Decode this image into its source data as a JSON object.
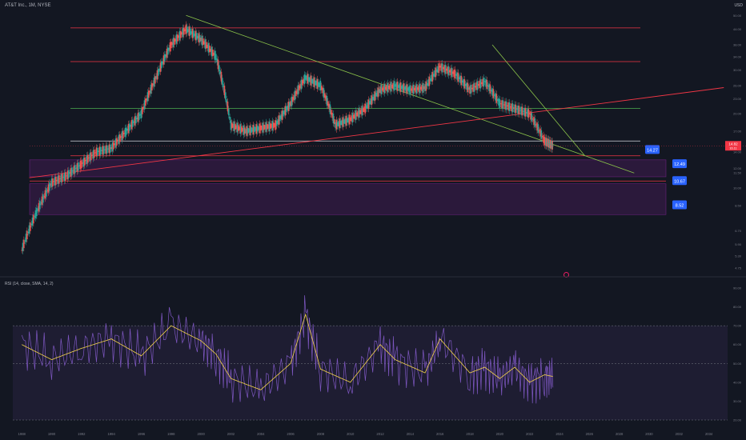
{
  "chart_data": [
    {
      "type": "line",
      "title": "AT&T Inc., 1M, NYSE",
      "currency": "USD",
      "price_axis_ticks": [
        "50.00",
        "44.00",
        "38.00",
        "34.00",
        "30.00",
        "26.00",
        "23.00",
        "20.00",
        "17.00",
        "14.00",
        "12.00",
        "11.50",
        "10.00",
        "8.50",
        "6.70",
        "5.90",
        "5.30",
        "4.75"
      ],
      "time_axis_ticks": [
        "1988",
        "1990",
        "1992",
        "1994",
        "1996",
        "1998",
        "2000",
        "2002",
        "2004",
        "2006",
        "2008",
        "2010",
        "2012",
        "2014",
        "2016",
        "2018",
        "2020",
        "2022",
        "2024",
        "2026",
        "2028",
        "2030",
        "2032",
        "2034"
      ],
      "current_price": "14.82",
      "current_price_sub": "16.11",
      "levels": [
        {
          "price": 14.27,
          "label": "14.27"
        },
        {
          "price": 12.49,
          "label": "12.49"
        },
        {
          "price": 10.67,
          "label": "10.67"
        },
        {
          "price": 8.52,
          "label": "8.52"
        }
      ],
      "horizontal_lines": [
        {
          "price": 44.5,
          "color": "#f23645"
        },
        {
          "price": 32.5,
          "color": "#f23645"
        },
        {
          "price": 21.0,
          "color": "#4caf50"
        },
        {
          "price": 15.5,
          "color": "#d1d4dc"
        },
        {
          "price": 13.5,
          "color": "#f23645"
        },
        {
          "price": 10.67,
          "color": "#f23645"
        }
      ],
      "zones": [
        {
          "from": 11.1,
          "to": 13.0,
          "color": "#9c27b0"
        },
        {
          "from": 7.8,
          "to": 10.4,
          "color": "#9c27b0"
        }
      ],
      "series_monthly_close_approx": {
        "x": [
          1988,
          1989,
          1990,
          1991,
          1992,
          1993,
          1994,
          1995,
          1996,
          1997,
          1998,
          1999,
          2000,
          2001,
          2002,
          2003,
          2004,
          2005,
          2006,
          2007,
          2008,
          2009,
          2010,
          2011,
          2012,
          2013,
          2014,
          2015,
          2016,
          2017,
          2018,
          2019,
          2020,
          2021,
          2022,
          2023,
          2023.6
        ],
        "y": [
          5.6,
          8.0,
          10.5,
          11.2,
          12.5,
          14.0,
          14.5,
          17.0,
          20.0,
          28.0,
          38.0,
          44.0,
          40.0,
          34.0,
          18.0,
          17.0,
          17.5,
          18.0,
          22.0,
          28.0,
          26.0,
          18.0,
          19.0,
          21.0,
          25.0,
          26.0,
          25.0,
          25.5,
          31.0,
          29.0,
          25.0,
          27.0,
          22.0,
          21.0,
          20.0,
          15.5,
          14.8
        ]
      },
      "colors": {
        "up": "#26a69a",
        "down": "#ef5350",
        "trend": "#8bc34a",
        "support": "#f23645"
      }
    },
    {
      "type": "line",
      "title": "RSI (14, close, SMA, 14, 2)",
      "y_ticks": [
        "90.00",
        "80.00",
        "70.00",
        "60.00",
        "50.00",
        "40.00",
        "30.00",
        "20.00"
      ],
      "ylim": [
        20,
        90
      ],
      "bands": {
        "upper": 70,
        "middle": 50,
        "lower": 20
      },
      "rsi_colors": {
        "rsi": "#7e57c2",
        "sma": "#f6d64a"
      },
      "x": [
        1988,
        1990,
        1992,
        1994,
        1996,
        1998,
        2000,
        2001,
        2002,
        2004,
        2006,
        2007,
        2008,
        2010,
        2012,
        2013,
        2015,
        2016,
        2018,
        2019,
        2020,
        2021,
        2022,
        2023,
        2023.6
      ],
      "rsi_sma": [
        60,
        52,
        58,
        63,
        54,
        70,
        62,
        55,
        42,
        36,
        50,
        76,
        47,
        40,
        60,
        52,
        45,
        63,
        45,
        48,
        42,
        48,
        40,
        44,
        43
      ]
    }
  ],
  "ui": {
    "cur_icons": "USD",
    "rsi_label": "RSI (14, close, SMA, 14, 2)"
  }
}
